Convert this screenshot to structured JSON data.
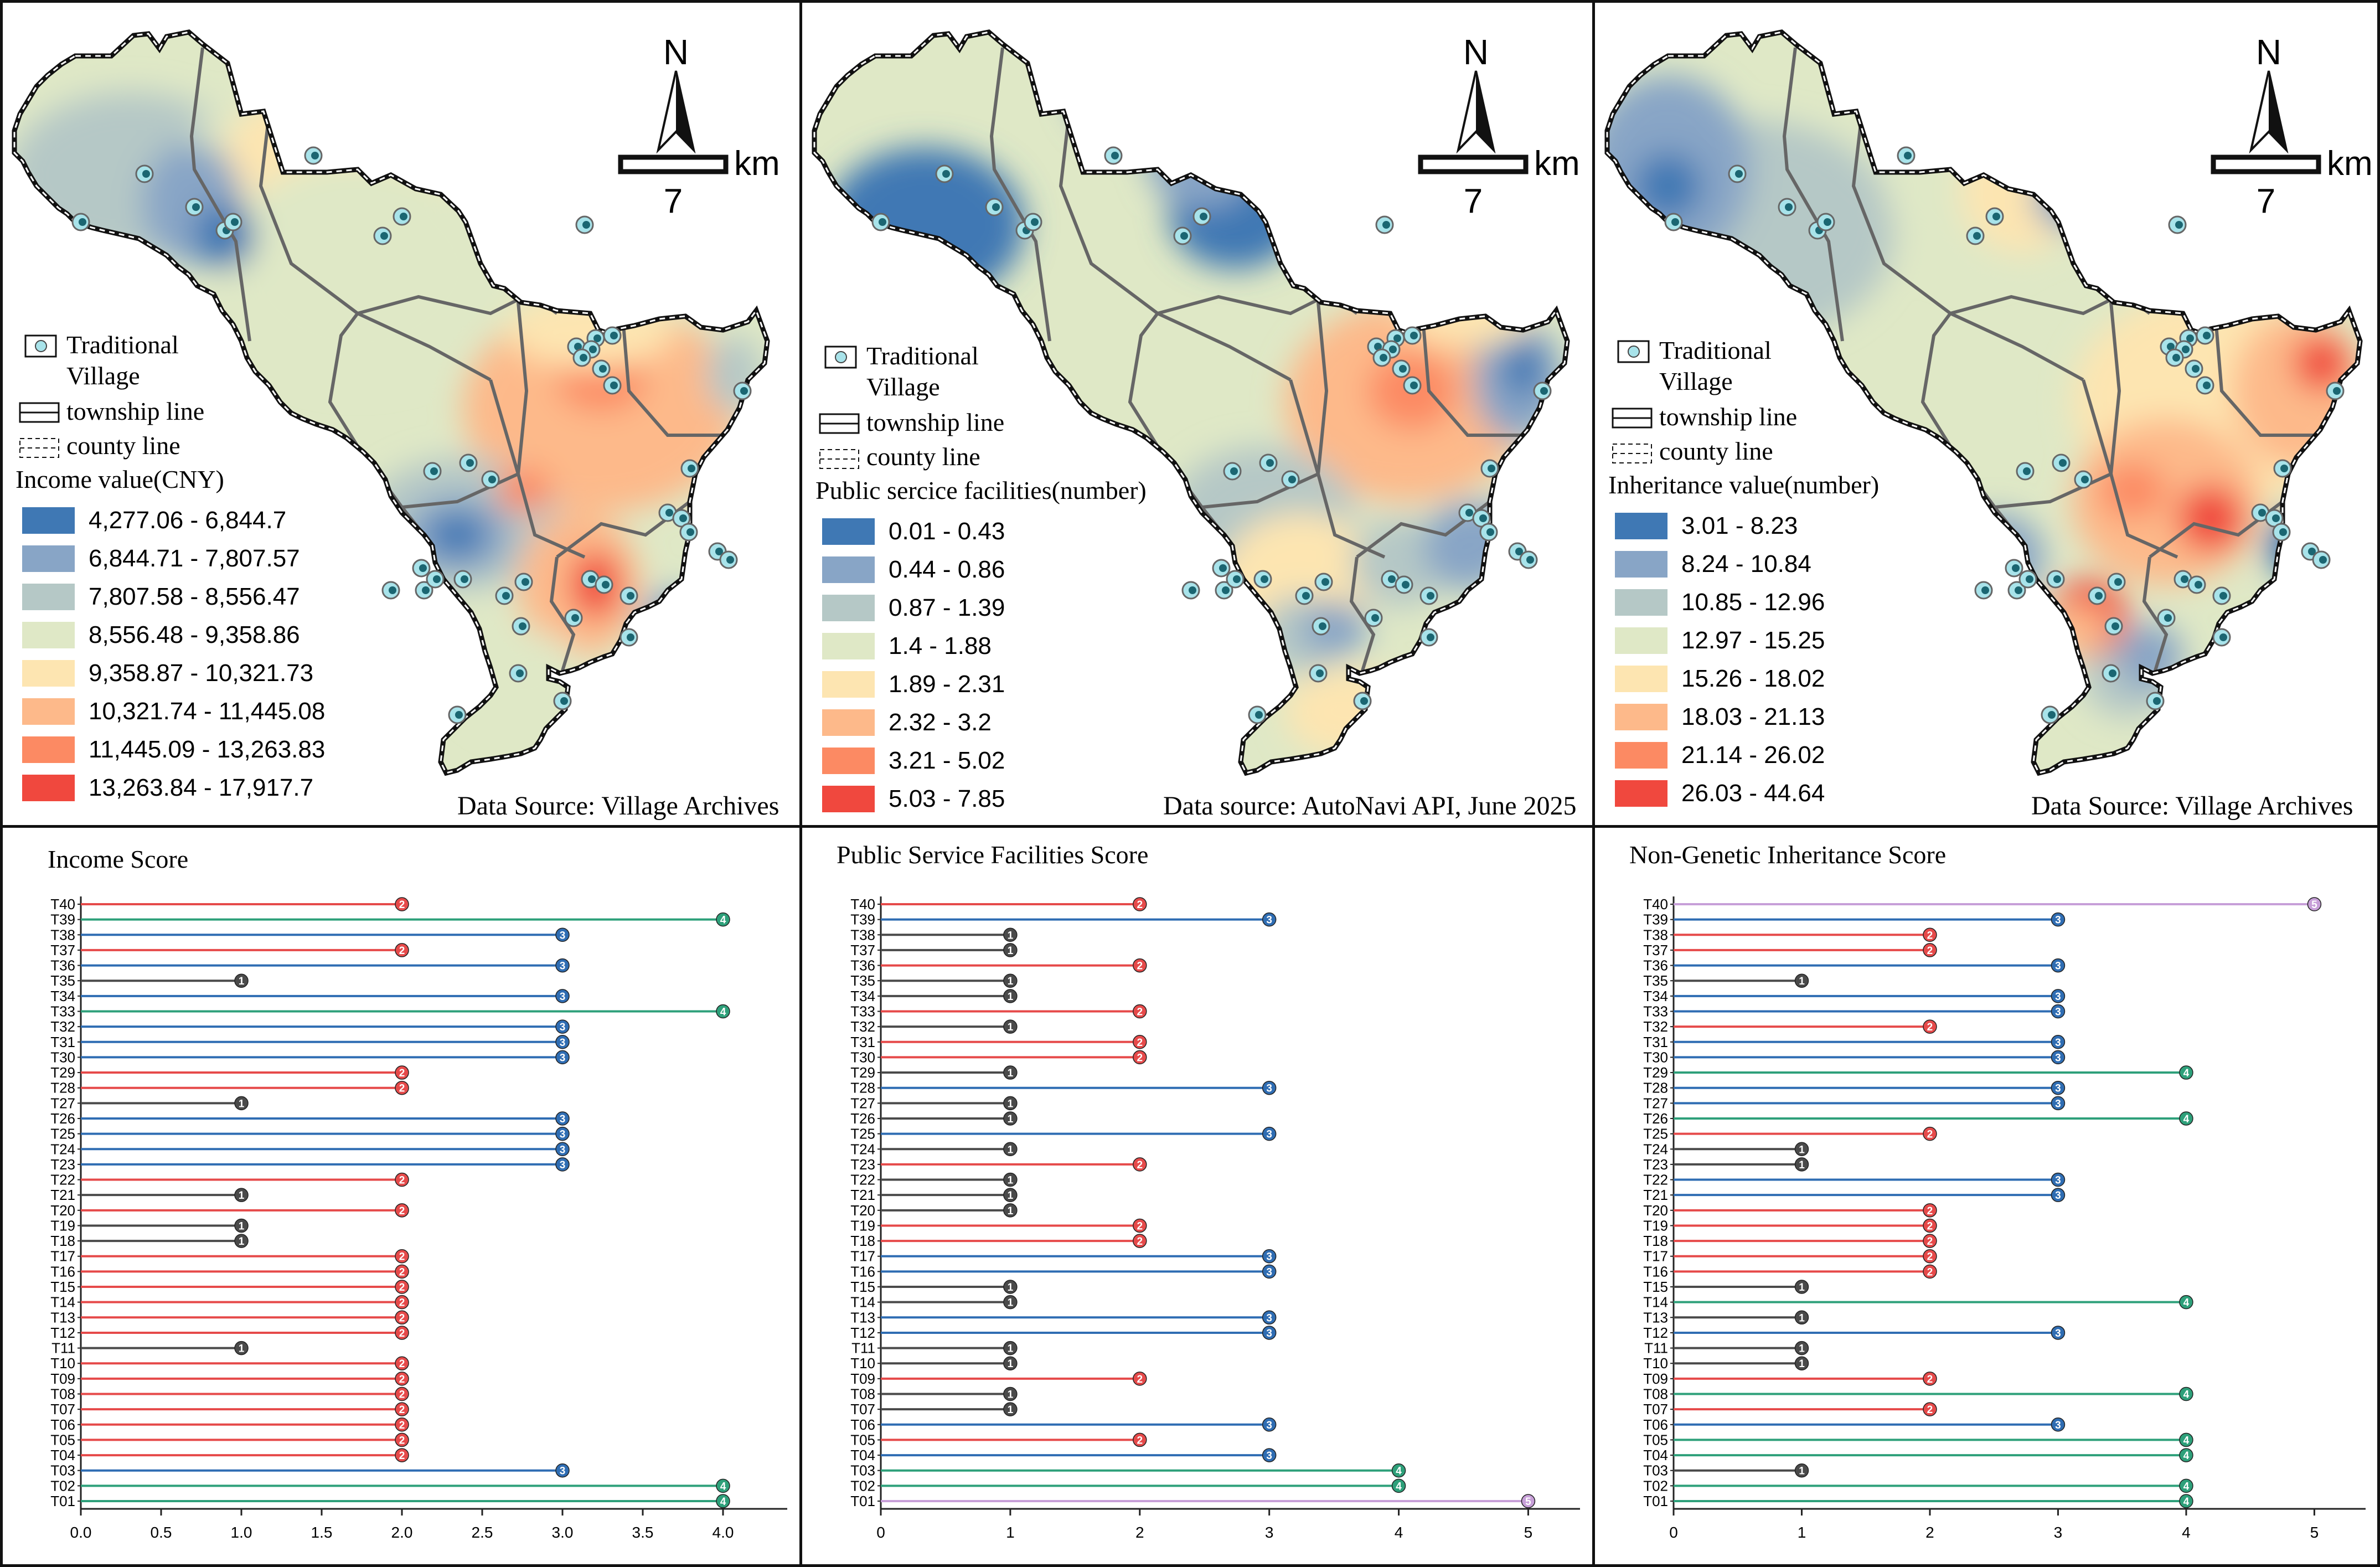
{
  "colors": {
    "c1": "#3f78b4",
    "c2": "#88a5c6",
    "c3": "#b5c8c6",
    "c4": "#dfe8c6",
    "c5": "#fde5b1",
    "c6": "#fdb98a",
    "c7": "#fc8a63",
    "c8": "#f0483e",
    "red": "#e64a4a",
    "blue": "#2f6db3",
    "green": "#2ea07a",
    "black": "#4a4a4a",
    "purple": "#c79fd8",
    "village": "#a8e3ea"
  },
  "maps": [
    {
      "north_label": "N",
      "scale_value": "7",
      "scale_unit": "km",
      "legend_village_line1": "Traditional",
      "legend_village_line2": "Village",
      "legend_township": "township line",
      "legend_county": "county line",
      "legend_title": "Income value(CNY)",
      "legend_classes": [
        "4,277.06 - 6,844.7",
        "6,844.71 - 7,807.57",
        "7,807.58 - 8,556.47",
        "8,556.48 - 9,358.86",
        "9,358.87 - 10,321.73",
        "10,321.74 - 11,445.08",
        "11,445.09 - 13,263.83",
        "13,263.84 - 17,917.7"
      ],
      "source": "Data Source: Village Archives"
    },
    {
      "north_label": "N",
      "scale_value": "7",
      "scale_unit": "km",
      "legend_village_line1": "Traditional",
      "legend_village_line2": "Village",
      "legend_township": "township line",
      "legend_county": "county line",
      "legend_title": "Public sercice facilities(number)",
      "legend_classes": [
        "0.01 - 0.43",
        "0.44 - 0.86",
        "0.87 - 1.39",
        "1.4 - 1.88",
        "1.89 - 2.31",
        "2.32 - 3.2",
        "3.21 - 5.02",
        "5.03 - 7.85"
      ],
      "source": "Data source: AutoNavi API, June 2025"
    },
    {
      "north_label": "N",
      "scale_value": "7",
      "scale_unit": "km",
      "legend_village_line1": "Traditional",
      "legend_village_line2": "Village",
      "legend_township": "township line",
      "legend_county": "county line",
      "legend_title": "Inheritance value(number)",
      "legend_classes": [
        "3.01 - 8.23",
        "8.24 - 10.84",
        "10.85 - 12.96",
        "12.97 - 15.25",
        "15.26 - 18.02",
        "18.03 - 21.13",
        "21.14 - 26.02",
        "26.03 - 44.64"
      ],
      "source": "Data Source: Village Archives"
    }
  ],
  "chart_data": [
    {
      "type": "lollipop",
      "title": "Income Score",
      "categories": [
        "T01",
        "T02",
        "T03",
        "T04",
        "T05",
        "T06",
        "T07",
        "T08",
        "T09",
        "T10",
        "T11",
        "T12",
        "T13",
        "T14",
        "T15",
        "T16",
        "T17",
        "T18",
        "T19",
        "T20",
        "T21",
        "T22",
        "T23",
        "T24",
        "T25",
        "T26",
        "T27",
        "T28",
        "T29",
        "T30",
        "T31",
        "T32",
        "T33",
        "T34",
        "T35",
        "T36",
        "T37",
        "T38",
        "T39",
        "T40"
      ],
      "values": [
        4,
        4,
        3,
        2,
        2,
        2,
        2,
        2,
        2,
        2,
        1,
        2,
        2,
        2,
        2,
        2,
        2,
        1,
        1,
        2,
        1,
        2,
        3,
        3,
        3,
        3,
        1,
        2,
        2,
        3,
        3,
        3,
        4,
        3,
        1,
        3,
        2,
        3,
        4,
        2
      ],
      "xlim": [
        0,
        4.4
      ],
      "xticks": [
        "0.0",
        "0.5",
        "1.0",
        "1.5",
        "2.0",
        "2.5",
        "3.0",
        "3.5",
        "4.0"
      ]
    },
    {
      "type": "lollipop",
      "title": "Public Service Facilities Score",
      "categories": [
        "T01",
        "T02",
        "T03",
        "T04",
        "T05",
        "T06",
        "T07",
        "T08",
        "T09",
        "T10",
        "T11",
        "T12",
        "T13",
        "T14",
        "T15",
        "T16",
        "T17",
        "T18",
        "T19",
        "T20",
        "T21",
        "T22",
        "T23",
        "T24",
        "T25",
        "T26",
        "T27",
        "T28",
        "T29",
        "T30",
        "T31",
        "T32",
        "T33",
        "T34",
        "T35",
        "T36",
        "T37",
        "T38",
        "T39",
        "T40"
      ],
      "values": [
        5,
        4,
        4,
        3,
        2,
        3,
        1,
        1,
        2,
        1,
        1,
        3,
        3,
        1,
        1,
        3,
        3,
        2,
        2,
        1,
        1,
        1,
        2,
        1,
        3,
        1,
        1,
        3,
        1,
        2,
        2,
        1,
        2,
        1,
        1,
        2,
        1,
        1,
        3,
        2
      ],
      "xlim": [
        0,
        5.4
      ],
      "xticks": [
        "0",
        "1",
        "2",
        "3",
        "4",
        "5"
      ]
    },
    {
      "type": "lollipop",
      "title": "Non-Genetic Inheritance Score",
      "categories": [
        "T01",
        "T02",
        "T03",
        "T04",
        "T05",
        "T06",
        "T07",
        "T08",
        "T09",
        "T10",
        "T11",
        "T12",
        "T13",
        "T14",
        "T15",
        "T16",
        "T17",
        "T18",
        "T19",
        "T20",
        "T21",
        "T22",
        "T23",
        "T24",
        "T25",
        "T26",
        "T27",
        "T28",
        "T29",
        "T30",
        "T31",
        "T32",
        "T33",
        "T34",
        "T35",
        "T36",
        "T37",
        "T38",
        "T39",
        "T40"
      ],
      "values": [
        4,
        4,
        1,
        4,
        4,
        3,
        2,
        4,
        2,
        1,
        1,
        3,
        1,
        4,
        1,
        2,
        2,
        2,
        2,
        2,
        3,
        3,
        1,
        1,
        2,
        4,
        3,
        3,
        4,
        3,
        3,
        2,
        3,
        3,
        1,
        3,
        2,
        2,
        3,
        5
      ],
      "xlim": [
        0,
        5.4
      ],
      "xticks": [
        "0",
        "1",
        "2",
        "3",
        "4",
        "5"
      ]
    }
  ]
}
